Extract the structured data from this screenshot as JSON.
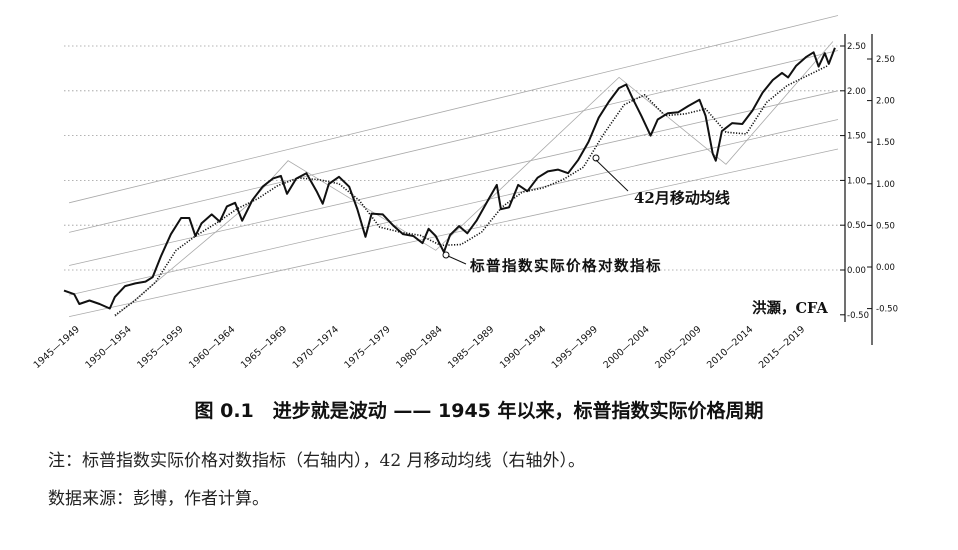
{
  "chart_data": {
    "type": "line",
    "x_categories": [
      "1945—1949",
      "1950—1954",
      "1955—1959",
      "1960—1964",
      "1965—1969",
      "1970—1974",
      "1975—1979",
      "1980—1984",
      "1985—1989",
      "1990—1994",
      "1995—1999",
      "2000—2004",
      "2005—2009",
      "2010—2014",
      "2015—2019"
    ],
    "xlim": [
      1945,
      2021
    ],
    "right_inner_axis": {
      "ticks": [
        "2.50",
        "2.00",
        "1.50",
        "1.00",
        "0.50",
        "0.00",
        "-0.50"
      ],
      "tick_values": [
        2.5,
        2.0,
        1.5,
        1.0,
        0.5,
        0.0,
        -0.5
      ],
      "range": [
        -0.57,
        2.76
      ]
    },
    "right_outer_axis": {
      "ticks": [
        "2.50",
        "2.00",
        "1.50",
        "1.00",
        "0.50",
        "0.00",
        "-0.50"
      ],
      "tick_values": [
        2.5,
        2.0,
        1.5,
        1.0,
        0.5,
        0.0,
        -0.5
      ],
      "range": [
        -0.9,
        2.7
      ]
    },
    "grid": "horizontal-dotted",
    "series": [
      {
        "axis": "inner",
        "style": "solid",
        "points": [
          [
            1945.0,
            -0.23
          ],
          [
            1946.0,
            -0.27
          ],
          [
            1946.5,
            -0.38
          ],
          [
            1947.5,
            -0.34
          ],
          [
            1948.5,
            -0.38
          ],
          [
            1949.5,
            -0.43
          ],
          [
            1950.0,
            -0.3
          ],
          [
            1951.0,
            -0.18
          ],
          [
            1952.0,
            -0.15
          ],
          [
            1953.0,
            -0.13
          ],
          [
            1953.7,
            -0.08
          ],
          [
            1954.5,
            0.15
          ],
          [
            1955.5,
            0.4
          ],
          [
            1956.5,
            0.58
          ],
          [
            1957.3,
            0.58
          ],
          [
            1957.9,
            0.38
          ],
          [
            1958.5,
            0.52
          ],
          [
            1959.5,
            0.62
          ],
          [
            1960.3,
            0.54
          ],
          [
            1961.0,
            0.71
          ],
          [
            1961.8,
            0.75
          ],
          [
            1962.5,
            0.55
          ],
          [
            1963.5,
            0.78
          ],
          [
            1964.5,
            0.93
          ],
          [
            1965.5,
            1.02
          ],
          [
            1966.3,
            1.05
          ],
          [
            1966.9,
            0.85
          ],
          [
            1967.8,
            1.02
          ],
          [
            1968.8,
            1.08
          ],
          [
            1969.8,
            0.88
          ],
          [
            1970.4,
            0.74
          ],
          [
            1971.0,
            0.96
          ],
          [
            1972.0,
            1.04
          ],
          [
            1973.0,
            0.93
          ],
          [
            1973.8,
            0.68
          ],
          [
            1974.6,
            0.37
          ],
          [
            1975.2,
            0.63
          ],
          [
            1976.3,
            0.62
          ],
          [
            1977.3,
            0.5
          ],
          [
            1978.3,
            0.4
          ],
          [
            1979.3,
            0.38
          ],
          [
            1980.2,
            0.3
          ],
          [
            1980.8,
            0.46
          ],
          [
            1981.5,
            0.38
          ],
          [
            1982.3,
            0.2
          ],
          [
            1982.9,
            0.39
          ],
          [
            1983.8,
            0.49
          ],
          [
            1984.6,
            0.41
          ],
          [
            1985.5,
            0.55
          ],
          [
            1986.5,
            0.75
          ],
          [
            1987.5,
            0.95
          ],
          [
            1987.9,
            0.68
          ],
          [
            1988.7,
            0.7
          ],
          [
            1989.6,
            0.95
          ],
          [
            1990.5,
            0.88
          ],
          [
            1991.5,
            1.03
          ],
          [
            1992.5,
            1.1
          ],
          [
            1993.5,
            1.12
          ],
          [
            1994.5,
            1.08
          ],
          [
            1995.5,
            1.23
          ],
          [
            1996.5,
            1.43
          ],
          [
            1997.5,
            1.7
          ],
          [
            1998.5,
            1.88
          ],
          [
            1999.5,
            2.03
          ],
          [
            2000.2,
            2.07
          ],
          [
            2000.9,
            1.9
          ],
          [
            2001.7,
            1.72
          ],
          [
            2002.6,
            1.5
          ],
          [
            2003.3,
            1.68
          ],
          [
            2004.3,
            1.75
          ],
          [
            2005.3,
            1.76
          ],
          [
            2006.3,
            1.83
          ],
          [
            2007.4,
            1.9
          ],
          [
            2008.0,
            1.72
          ],
          [
            2008.7,
            1.3
          ],
          [
            2009.0,
            1.22
          ],
          [
            2009.6,
            1.55
          ],
          [
            2010.6,
            1.64
          ],
          [
            2011.6,
            1.63
          ],
          [
            2012.6,
            1.78
          ],
          [
            2013.6,
            1.98
          ],
          [
            2014.6,
            2.12
          ],
          [
            2015.5,
            2.2
          ],
          [
            2016.1,
            2.15
          ],
          [
            2016.9,
            2.28
          ],
          [
            2017.9,
            2.38
          ],
          [
            2018.6,
            2.43
          ],
          [
            2019.1,
            2.27
          ],
          [
            2019.7,
            2.42
          ],
          [
            2020.1,
            2.3
          ],
          [
            2020.7,
            2.48
          ]
        ]
      },
      {
        "axis": "outer",
        "style": "dotted",
        "points": [
          [
            1950.0,
            -0.58
          ],
          [
            1952.0,
            -0.4
          ],
          [
            1954.0,
            -0.18
          ],
          [
            1956.0,
            0.2
          ],
          [
            1958.0,
            0.38
          ],
          [
            1960.0,
            0.53
          ],
          [
            1962.0,
            0.7
          ],
          [
            1964.0,
            0.82
          ],
          [
            1966.0,
            0.98
          ],
          [
            1968.0,
            1.07
          ],
          [
            1970.0,
            1.05
          ],
          [
            1972.0,
            1.0
          ],
          [
            1974.0,
            0.8
          ],
          [
            1976.0,
            0.48
          ],
          [
            1978.0,
            0.42
          ],
          [
            1980.0,
            0.38
          ],
          [
            1982.0,
            0.26
          ],
          [
            1984.0,
            0.27
          ],
          [
            1986.0,
            0.42
          ],
          [
            1988.0,
            0.72
          ],
          [
            1990.0,
            0.9
          ],
          [
            1992.0,
            0.95
          ],
          [
            1994.0,
            1.05
          ],
          [
            1996.0,
            1.2
          ],
          [
            1998.0,
            1.6
          ],
          [
            2000.0,
            1.95
          ],
          [
            2002.0,
            2.07
          ],
          [
            2004.0,
            1.82
          ],
          [
            2006.0,
            1.84
          ],
          [
            2008.0,
            1.9
          ],
          [
            2010.0,
            1.62
          ],
          [
            2012.0,
            1.6
          ],
          [
            2014.0,
            1.98
          ],
          [
            2016.0,
            2.18
          ],
          [
            2018.0,
            2.3
          ],
          [
            2020.0,
            2.42
          ]
        ]
      }
    ],
    "trend_channel": [
      [
        [
          1945.5,
          0.75
        ],
        [
          2021.0,
          2.84
        ]
      ],
      [
        [
          1945.5,
          0.42
        ],
        [
          2021.0,
          2.45
        ]
      ],
      [
        [
          1945.5,
          0.05
        ],
        [
          2021.0,
          2.0
        ]
      ],
      [
        [
          1945.5,
          -0.28
        ],
        [
          2021.0,
          1.68
        ]
      ],
      [
        [
          1945.5,
          -0.52
        ],
        [
          2021.0,
          1.35
        ]
      ]
    ],
    "envelope_lines": [
      [
        [
          1950.0,
          -0.52
        ],
        [
          1963.0,
          0.72
        ],
        [
          1967.0,
          1.22
        ],
        [
          1981.5,
          0.22
        ],
        [
          1999.5,
          2.15
        ],
        [
          2010.0,
          1.18
        ],
        [
          2020.5,
          2.55
        ]
      ]
    ],
    "annotations": {
      "ma_label": "42月移动均线",
      "index_label": "标普指数实际价格对数指标",
      "author": "洪灝，CFA"
    }
  },
  "caption": {
    "title": "图 0.1　进步就是波动 —— 1945 年以来，标普指数实际价格周期",
    "note": "注：标普指数实际价格对数指标（右轴内），42 月移动均线（右轴外）。",
    "source": "数据来源：彭博，作者计算。"
  },
  "colors": {
    "line": "#111111",
    "grid": "#9a9a9a",
    "channel": "#aaaaaa",
    "text": "#111111"
  }
}
